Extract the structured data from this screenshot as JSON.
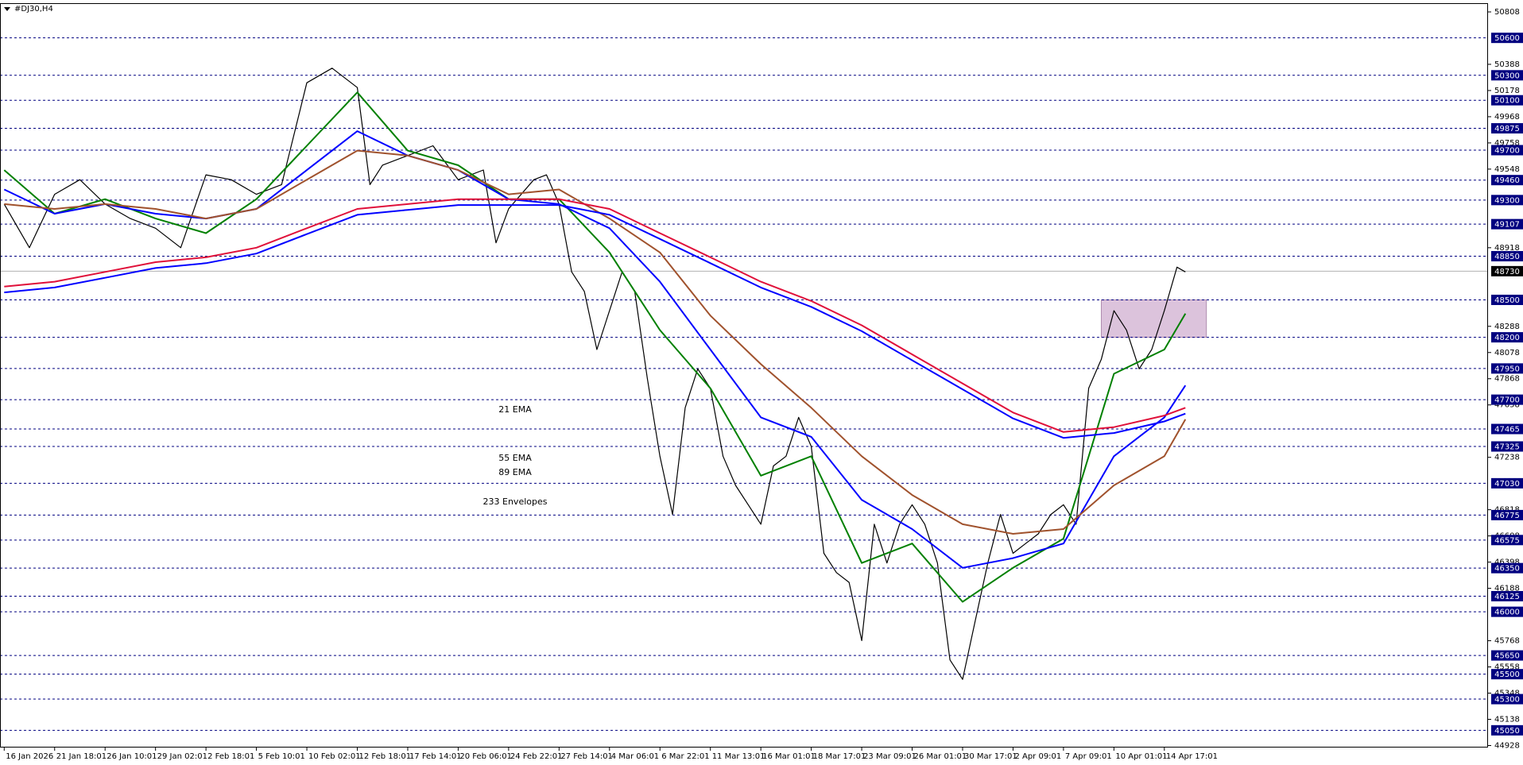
{
  "chart_data": {
    "type": "line",
    "title": "#DJ30,H4",
    "xlim": [
      -1,
      353
    ],
    "ylim": [
      44912,
      50878
    ],
    "grid": false,
    "xticks": [
      {
        "value": 0,
        "label": "16 Jan 2026"
      },
      {
        "value": 12,
        "label": "21 Jan 18:01"
      },
      {
        "value": 24,
        "label": "26 Jan 10:01"
      },
      {
        "value": 36,
        "label": "29 Jan 02:01"
      },
      {
        "value": 48,
        "label": "2 Feb 18:01"
      },
      {
        "value": 60,
        "label": "5 Feb 10:01"
      },
      {
        "value": 72,
        "label": "10 Feb 02:01"
      },
      {
        "value": 84,
        "label": "12 Feb 18:01"
      },
      {
        "value": 96,
        "label": "17 Feb 14:01"
      },
      {
        "value": 108,
        "label": "20 Feb 06:01"
      },
      {
        "value": 120,
        "label": "24 Feb 22:01"
      },
      {
        "value": 132,
        "label": "27 Feb 14:01"
      },
      {
        "value": 144,
        "label": "4 Mar 06:01"
      },
      {
        "value": 156,
        "label": "6 Mar 22:01"
      },
      {
        "value": 168,
        "label": "11 Mar 13:01"
      },
      {
        "value": 180,
        "label": "16 Mar 01:01"
      },
      {
        "value": 192,
        "label": "18 Mar 17:01"
      },
      {
        "value": 204,
        "label": "23 Mar 09:01"
      },
      {
        "value": 216,
        "label": "26 Mar 01:01"
      },
      {
        "value": 228,
        "label": "30 Mar 17:01"
      },
      {
        "value": 240,
        "label": "2 Apr 09:01"
      },
      {
        "value": 252,
        "label": "7 Apr 09:01"
      },
      {
        "value": 264,
        "label": "10 Apr 01:01"
      },
      {
        "value": 276,
        "label": "14 Apr 17:01"
      }
    ],
    "yticks": [
      50808,
      50388,
      50178,
      49968,
      49758,
      49548,
      48918,
      48288,
      48078,
      47868,
      47658,
      47238,
      46818,
      46608,
      46398,
      46188,
      45768,
      45558,
      45348,
      45138,
      44928
    ],
    "levels": [
      50600,
      50300,
      50100,
      49875,
      49700,
      49460,
      49300,
      49107,
      48850,
      48500,
      48200,
      47950,
      47700,
      47465,
      47325,
      47030,
      46775,
      46575,
      46350,
      46125,
      46000,
      45650,
      45500,
      45300,
      45050
    ],
    "levels_color": "#000080",
    "last_price": 48730,
    "zone": {
      "x": [
        261,
        286
      ],
      "y": [
        48200,
        48500
      ],
      "color": "#dcc3dc"
    },
    "series": [
      {
        "color": "#000000",
        "x": [
          0,
          6,
          12,
          18,
          24,
          30,
          36,
          42,
          48,
          54,
          60,
          66,
          72,
          78,
          84,
          87,
          90,
          96,
          102,
          108,
          114,
          117,
          120,
          126,
          129,
          132,
          135,
          138,
          141,
          144,
          147,
          150,
          153,
          156,
          159,
          162,
          165,
          168,
          171,
          174,
          177,
          180,
          183,
          186,
          189,
          192,
          195,
          198,
          201,
          204,
          207,
          210,
          213,
          216,
          219,
          222,
          225,
          228,
          231,
          234,
          237,
          240,
          243,
          246,
          249,
          252,
          255,
          258,
          261,
          264,
          267,
          270,
          273,
          276,
          279,
          281
        ],
        "values": [
          49268,
          48918,
          49346,
          49463,
          49268,
          49152,
          49074,
          48918,
          49502,
          49463,
          49346,
          49424,
          50240,
          50357,
          50202,
          49424,
          49580,
          49657,
          49735,
          49463,
          49541,
          48957,
          49230,
          49463,
          49502,
          49268,
          48724,
          48568,
          48102,
          48413,
          48724,
          48568,
          47869,
          47247,
          46780,
          47636,
          47947,
          47791,
          47247,
          47013,
          46858,
          46702,
          47169,
          47247,
          47558,
          47325,
          46469,
          46314,
          46236,
          45769,
          46702,
          46391,
          46702,
          46858,
          46702,
          46391,
          45614,
          45458,
          45925,
          46391,
          46780,
          46469,
          46547,
          46625,
          46780,
          46858,
          46702,
          47791,
          48024,
          48413,
          48257,
          47947,
          48102,
          48413,
          48762,
          48724
        ]
      },
      {
        "name": "21 EMA",
        "color": "#008000",
        "x": [
          0,
          12,
          24,
          36,
          48,
          60,
          72,
          84,
          96,
          108,
          120,
          132,
          144,
          156,
          168,
          180,
          192,
          204,
          216,
          228,
          240,
          252,
          264,
          276,
          281
        ],
        "values": [
          49540,
          49191,
          49307,
          49152,
          49035,
          49307,
          49735,
          50163,
          49696,
          49579,
          49307,
          49307,
          48880,
          48258,
          47791,
          47091,
          47247,
          46391,
          46547,
          46080,
          46352,
          46586,
          47908,
          48102,
          48390
        ]
      },
      {
        "name": "55 EMA",
        "color": "#0000ff",
        "x": [
          0,
          12,
          24,
          36,
          48,
          60,
          72,
          84,
          96,
          108,
          120,
          132,
          144,
          156,
          168,
          180,
          192,
          204,
          216,
          228,
          240,
          252,
          264,
          276,
          281
        ],
        "values": [
          49385,
          49191,
          49268,
          49191,
          49152,
          49229,
          49540,
          49852,
          49657,
          49540,
          49307,
          49268,
          49074,
          48646,
          48102,
          47558,
          47402,
          46897,
          46663,
          46352,
          46430,
          46547,
          47247,
          47558,
          47814
        ]
      },
      {
        "name": "89 EMA",
        "color": "#a0522d",
        "x": [
          0,
          12,
          24,
          36,
          48,
          60,
          72,
          84,
          96,
          108,
          120,
          132,
          144,
          156,
          168,
          180,
          192,
          204,
          216,
          228,
          240,
          252,
          264,
          276,
          281
        ],
        "values": [
          49268,
          49229,
          49268,
          49229,
          49152,
          49229,
          49463,
          49696,
          49657,
          49540,
          49346,
          49385,
          49152,
          48880,
          48374,
          47985,
          47635,
          47247,
          46936,
          46702,
          46625,
          46663,
          47013,
          47247,
          47542
        ]
      },
      {
        "name": "233 Envelopes",
        "color": "#e0103a",
        "lower_color": "#0000ff",
        "x": [
          0,
          12,
          24,
          36,
          48,
          60,
          72,
          84,
          96,
          108,
          120,
          132,
          144,
          156,
          168,
          180,
          192,
          204,
          216,
          228,
          240,
          252,
          264,
          276,
          281
        ],
        "values": [
          48607,
          48646,
          48724,
          48802,
          48841,
          48918,
          49074,
          49229,
          49268,
          49307,
          49307,
          49307,
          49229,
          49035,
          48841,
          48646,
          48491,
          48296,
          48063,
          47830,
          47597,
          47441,
          47480,
          47573,
          47635
        ],
        "lower": [
          48560,
          48599,
          48677,
          48755,
          48794,
          48871,
          49027,
          49182,
          49221,
          49260,
          49260,
          49260,
          49182,
          48988,
          48794,
          48599,
          48444,
          48249,
          48016,
          47783,
          47550,
          47394,
          47433,
          47526,
          47588
        ]
      }
    ]
  }
}
